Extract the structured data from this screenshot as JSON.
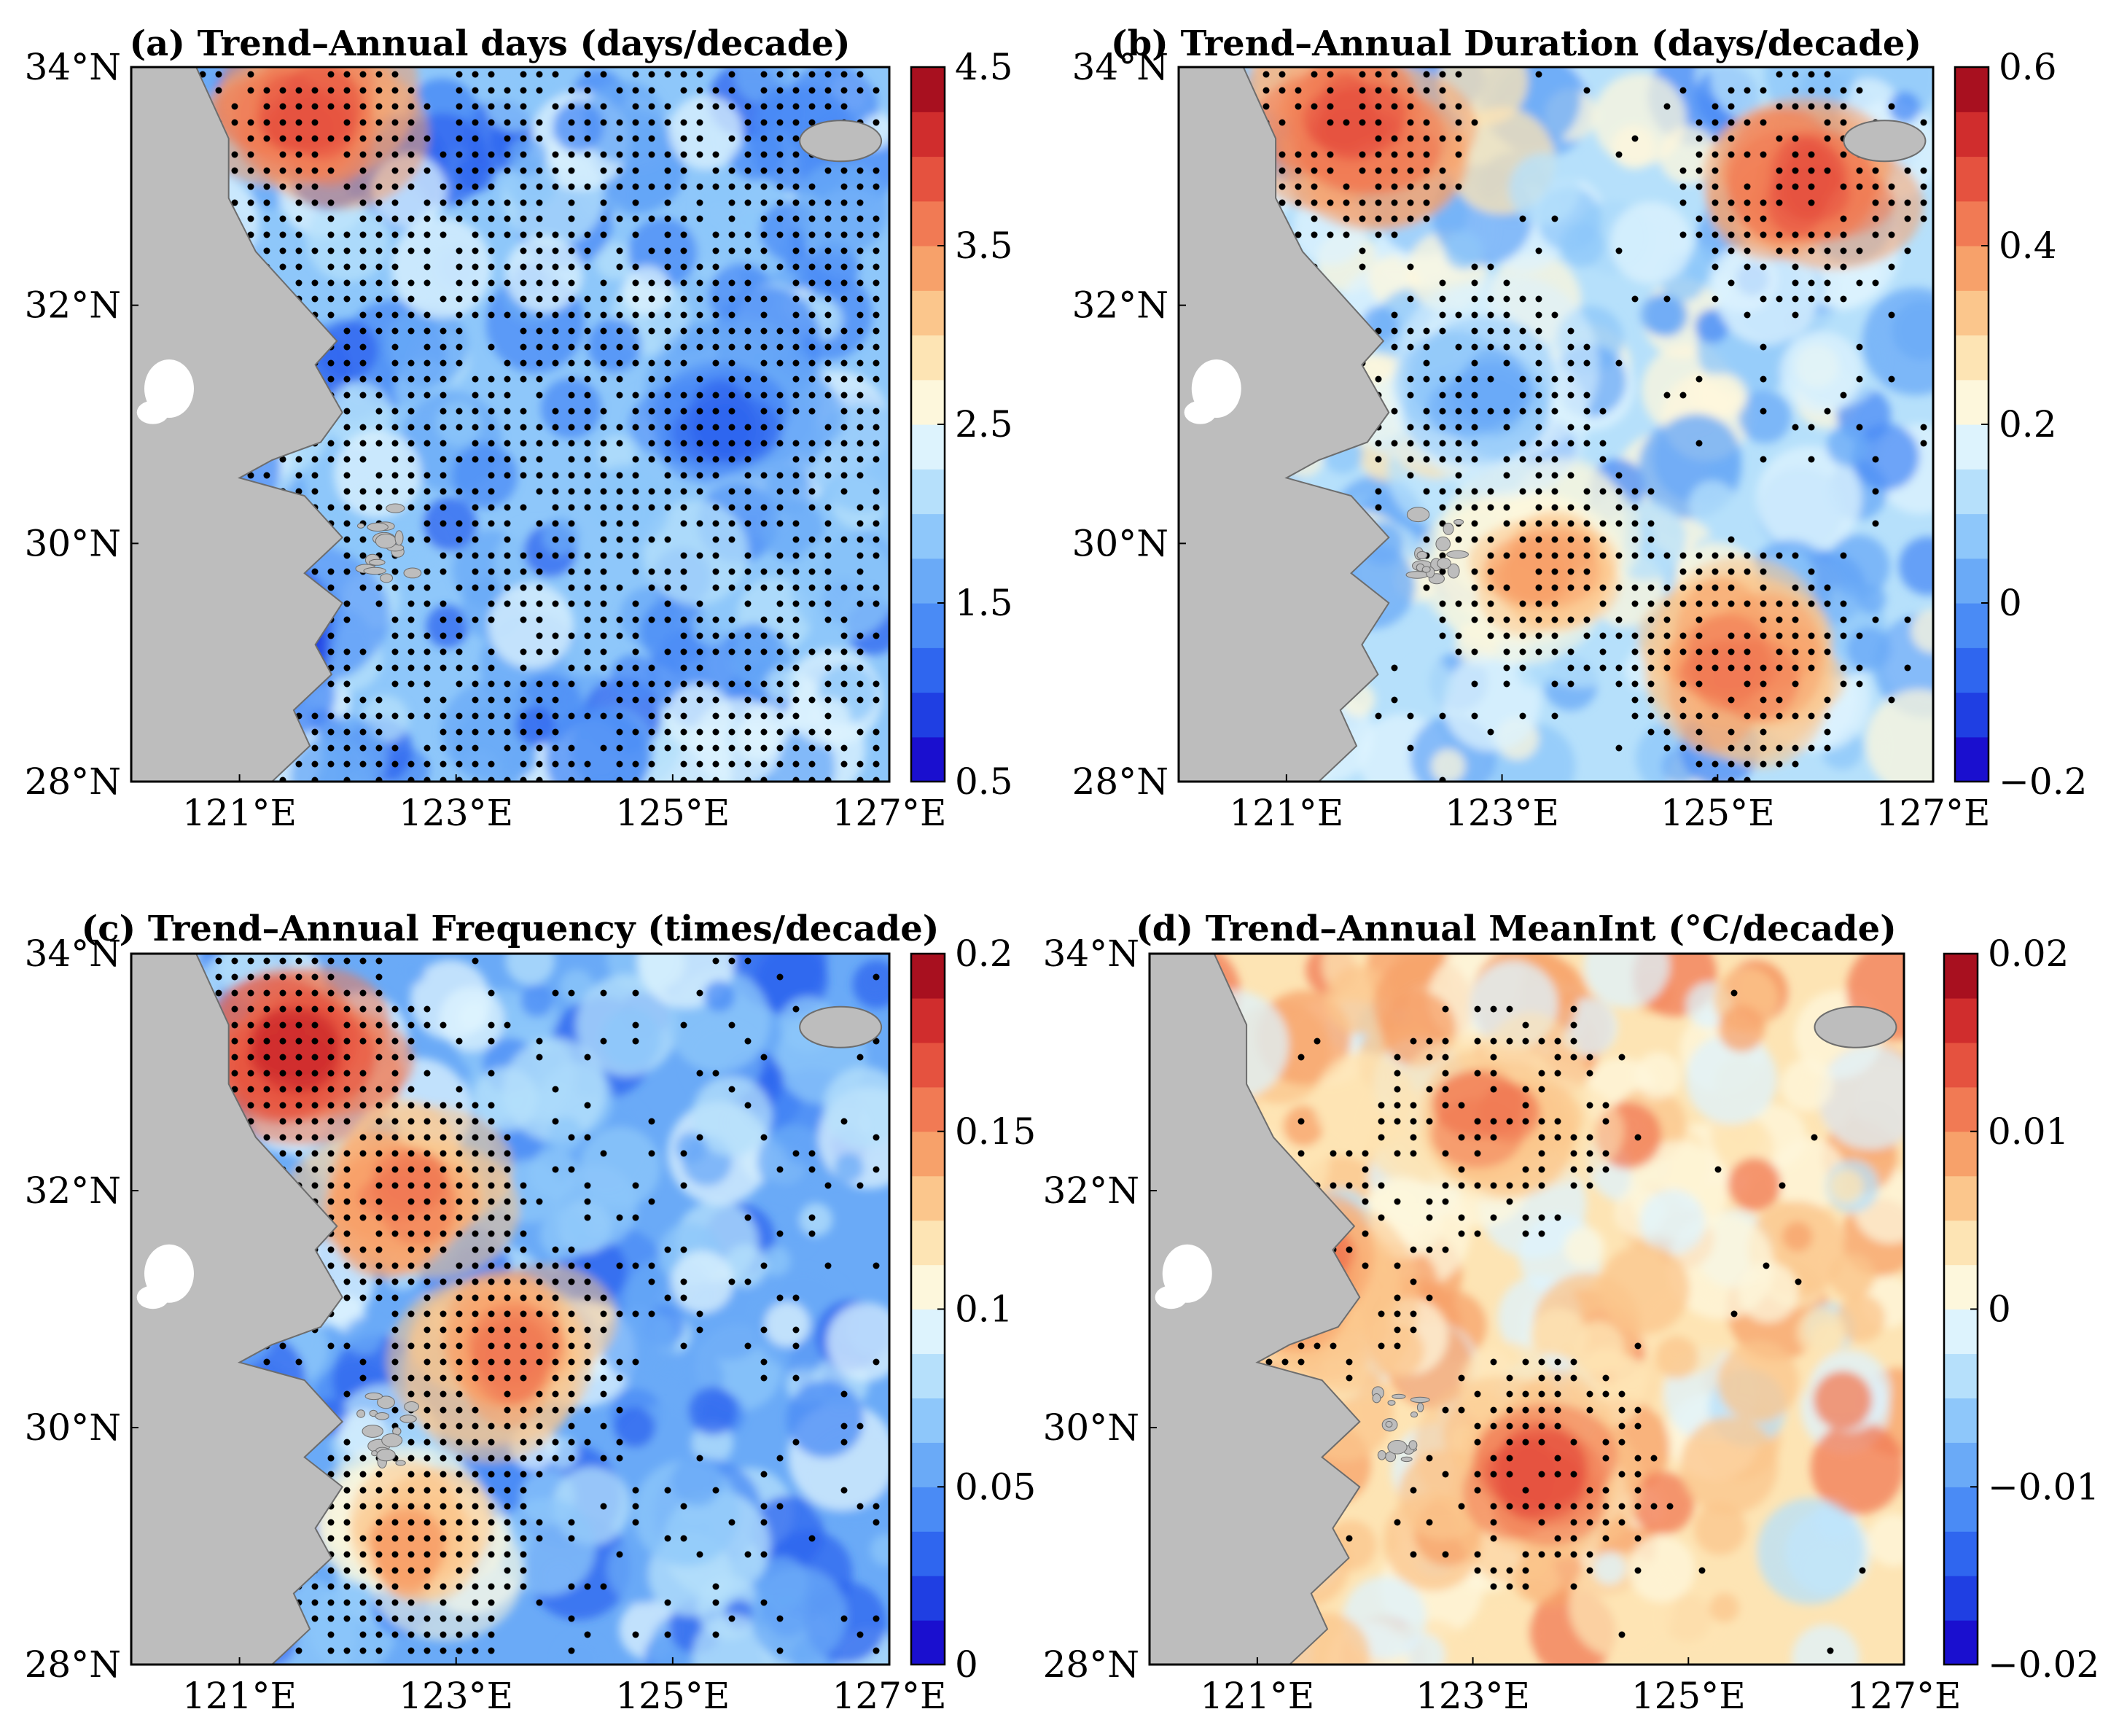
{
  "figure": {
    "panels": [
      {
        "id": "a",
        "title": "(a) Trend–Annual days (days/decade)",
        "colormap": "blue-red",
        "colorbar": {
          "min": 0.5,
          "max": 4.5,
          "levels": 16,
          "tick_labels": [
            "4.5",
            "3.5",
            "2.5",
            "1.5",
            "0.5"
          ],
          "tick_values": [
            4.5,
            3.5,
            2.5,
            1.5,
            0.5
          ]
        },
        "field_level": 0.32,
        "hot_spots": [
          {
            "lon": 121.6,
            "lat": 33.6,
            "level": 0.85
          },
          {
            "lon": 121.2,
            "lat": 29.2,
            "level": 0.05
          },
          {
            "lon": 125.5,
            "lat": 31.0,
            "level": 0.15
          }
        ],
        "stipple_density": "dense"
      },
      {
        "id": "b",
        "title": "(b) Trend–Annual Duration (days/decade)",
        "colormap": "blue-red",
        "colorbar": {
          "min": -0.2,
          "max": 0.6,
          "levels": 16,
          "tick_labels": [
            "0.6",
            "0.4",
            "0.2",
            "0",
            "−0.2"
          ],
          "tick_values": [
            0.6,
            0.4,
            0.2,
            0,
            -0.2
          ]
        },
        "field_level": 0.4,
        "hot_spots": [
          {
            "lon": 121.6,
            "lat": 33.5,
            "level": 0.85
          },
          {
            "lon": 125.8,
            "lat": 33.0,
            "level": 0.85
          },
          {
            "lon": 125.2,
            "lat": 29.0,
            "level": 0.8
          },
          {
            "lon": 123.4,
            "lat": 29.8,
            "level": 0.7
          },
          {
            "lon": 122.8,
            "lat": 31.2,
            "level": 0.3
          }
        ],
        "stipple_density": "sparse"
      },
      {
        "id": "c",
        "title": "(c) Trend–Annual Frequency (times/decade)",
        "colormap": "blue-red",
        "colorbar": {
          "min": 0,
          "max": 0.2,
          "levels": 16,
          "tick_labels": [
            "0.2",
            "0.15",
            "0.1",
            "0.05",
            "0"
          ],
          "tick_values": [
            0.2,
            0.15,
            0.1,
            0.05,
            0
          ]
        },
        "field_level": 0.3,
        "hot_spots": [
          {
            "lon": 121.5,
            "lat": 33.2,
            "level": 0.9
          },
          {
            "lon": 122.5,
            "lat": 32.0,
            "level": 0.8
          },
          {
            "lon": 123.5,
            "lat": 30.6,
            "level": 0.8
          },
          {
            "lon": 122.6,
            "lat": 29.0,
            "level": 0.7
          }
        ],
        "stipple_density": "medium"
      },
      {
        "id": "d",
        "title": "(d) Trend–Annual MeanInt (°C/decade)",
        "colormap": "blue-red",
        "colorbar": {
          "min": -0.02,
          "max": 0.02,
          "levels": 16,
          "tick_labels": [
            "0.02",
            "0.01",
            "0",
            "−0.01",
            "−0.02"
          ],
          "tick_values": [
            0.02,
            0.01,
            0,
            -0.01,
            -0.02
          ]
        },
        "field_level": 0.6,
        "hot_spots": [
          {
            "lon": 123.6,
            "lat": 29.6,
            "level": 0.82
          },
          {
            "lon": 123.2,
            "lat": 32.6,
            "level": 0.75
          },
          {
            "lon": 121.5,
            "lat": 31.4,
            "level": 0.8
          }
        ],
        "stipple_density": "very-sparse"
      }
    ],
    "axes": {
      "lat_range": [
        28,
        34
      ],
      "lon_range": [
        120,
        127
      ],
      "lat_tick_labels": [
        "34°N",
        "32°N",
        "30°N",
        "28°N"
      ],
      "lat_ticks": [
        34,
        32,
        30,
        28
      ],
      "lon_tick_labels": [
        "121°E",
        "123°E",
        "125°E",
        "127°E"
      ],
      "lon_ticks": [
        121,
        123,
        125,
        127
      ]
    },
    "colors": {
      "land": "#bdbdbd",
      "coast": "#6d6d6d",
      "stipple": "#000000",
      "cmap": [
        "#1a0fcf",
        "#1f3fe3",
        "#2f66ef",
        "#4a8bf5",
        "#6aaaf7",
        "#8ec7fa",
        "#b6e0fb",
        "#ddf3fd",
        "#fdf7dc",
        "#fde4b4",
        "#fbc68c",
        "#f7a16a",
        "#f17a54",
        "#e5523f",
        "#d02d2d",
        "#a8101f"
      ]
    }
  }
}
